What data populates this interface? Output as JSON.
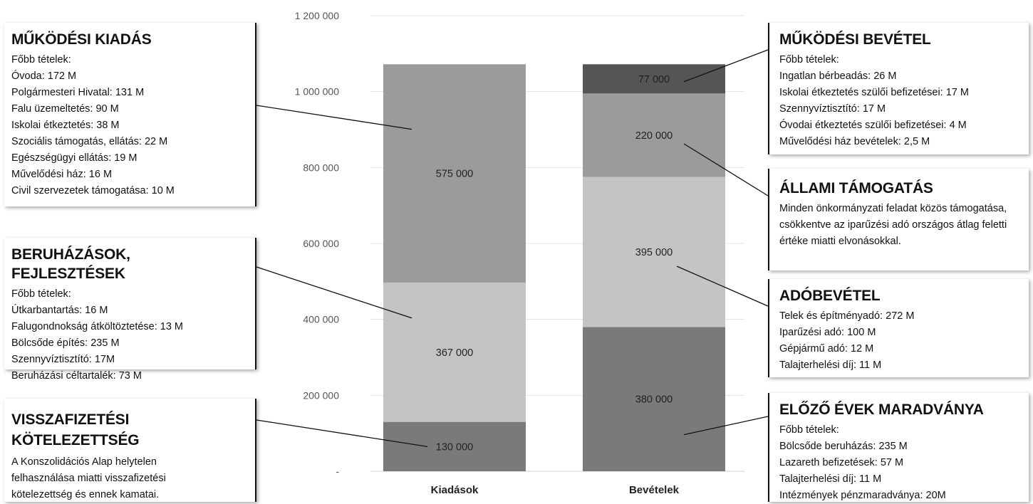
{
  "chart_data": {
    "type": "bar",
    "stacked": true,
    "categories": [
      "Kiadások",
      "Bevételek"
    ],
    "ylim": [
      0,
      1200000
    ],
    "yticks": [
      "1 200 000",
      "1 000 000",
      "800 000",
      "600 000",
      "400 000",
      "200 000",
      "-"
    ],
    "ytick_values": [
      1200000,
      1000000,
      800000,
      600000,
      400000,
      200000,
      0
    ],
    "grid": true,
    "stacks": [
      {
        "category": "Kiadások",
        "segments": [
          {
            "value": 130000,
            "label": "130 000",
            "color": "#7a7a7a"
          },
          {
            "value": 367000,
            "label": "367 000",
            "color": "#c4c4c4"
          },
          {
            "value": 575000,
            "label": "575 000",
            "color": "#9b9b9b"
          }
        ]
      },
      {
        "category": "Bevételek",
        "segments": [
          {
            "value": 380000,
            "label": "380 000",
            "color": "#7a7a7a"
          },
          {
            "value": 395000,
            "label": "395 000",
            "color": "#c4c4c4"
          },
          {
            "value": 220000,
            "label": "220 000",
            "color": "#9b9b9b"
          },
          {
            "value": 77000,
            "label": "77 000",
            "color": "#555555"
          }
        ]
      }
    ]
  },
  "boxes": {
    "mukodesi_kiadas": {
      "title": "MŰKÖDÉSI KIADÁS",
      "lines": [
        "Főbb tételek:",
        "Óvoda: 172 M",
        "Polgármesteri Hivatal: 131 M",
        "Falu üzemeltetés: 90 M",
        "Iskolai étkeztetés: 38 M",
        "Szociális támogatás, ellátás: 22 M",
        "Egészségügyi ellátás: 19 M",
        "Művelődési ház: 16 M",
        "Civil szervezetek támogatása: 10 M"
      ]
    },
    "beruhazasok": {
      "title": "BERUHÁZÁSOK, FEJLESZTÉSEK",
      "lines": [
        "Főbb tételek:",
        "Útkarbantartás: 16 M",
        "Falugondnokság átköltöztetése: 13 M",
        "Bölcsőde építés: 235 M",
        "Szennyvíztisztító: 17M",
        "Beruházási céltartalék: 73 M"
      ]
    },
    "visszafizetesi": {
      "title_line1": "VISSZAFIZETÉSI",
      "title_line2": "KÖTELEZETTSÉG",
      "text": "A Konszolidációs Alap helytelen felhasználása miatti visszafizetési kötelezettség és ennek kamatai."
    },
    "mukodesi_bevetel": {
      "title": "MŰKÖDÉSI BEVÉTEL",
      "lines": [
        "Főbb tételek:",
        "Ingatlan bérbeadás: 26 M",
        "Iskolai étkeztetés szülői befizetései: 17 M",
        "Szennyvíztisztító: 17 M",
        "Óvodai étkeztetés szülői befizetései: 4 M",
        "Művelődési ház bevételek: 2,5 M"
      ]
    },
    "allami_tamogatas": {
      "title": "ÁLLAMI TÁMOGATÁS",
      "text": "Minden önkormányzati feladat közös támogatása, csökkentve az iparűzési adó országos átlag feletti értéke miatti elvonásokkal."
    },
    "adobevetel": {
      "title": "ADÓBEVÉTEL",
      "lines": [
        "Telek és építményadó: 272 M",
        "Iparűzési adó: 100 M",
        "Gépjármű adó: 12 M",
        "Talajterhelési díj: 11 M"
      ]
    },
    "elozo_evek": {
      "title": "ELŐZŐ ÉVEK MARADVÁNYA",
      "lines": [
        "Főbb tételek:",
        "Bölcsőde beruházás: 235 M",
        "Lazareth befizetések: 57 M",
        "Talajterhelési díj: 11 M",
        "Intézmények pénzmaradványa: 20M"
      ]
    }
  }
}
